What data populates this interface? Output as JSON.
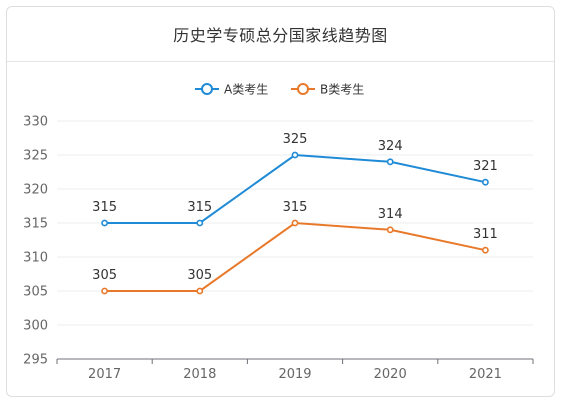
{
  "chart_data": {
    "type": "line",
    "title": "历史学专硕总分国家线趋势图",
    "categories": [
      "2017",
      "2018",
      "2019",
      "2020",
      "2021"
    ],
    "series": [
      {
        "name": "A类考生",
        "values": [
          315,
          315,
          325,
          324,
          321
        ],
        "color": "#1f8ad6"
      },
      {
        "name": "B类考生",
        "values": [
          305,
          305,
          315,
          314,
          311
        ],
        "color": "#e8792a"
      }
    ],
    "ylim": [
      295,
      330
    ],
    "yticks": [
      295,
      300,
      305,
      310,
      315,
      320,
      325,
      330
    ],
    "xlabel": "",
    "ylabel": "",
    "grid": true,
    "legend_position": "top-center"
  }
}
